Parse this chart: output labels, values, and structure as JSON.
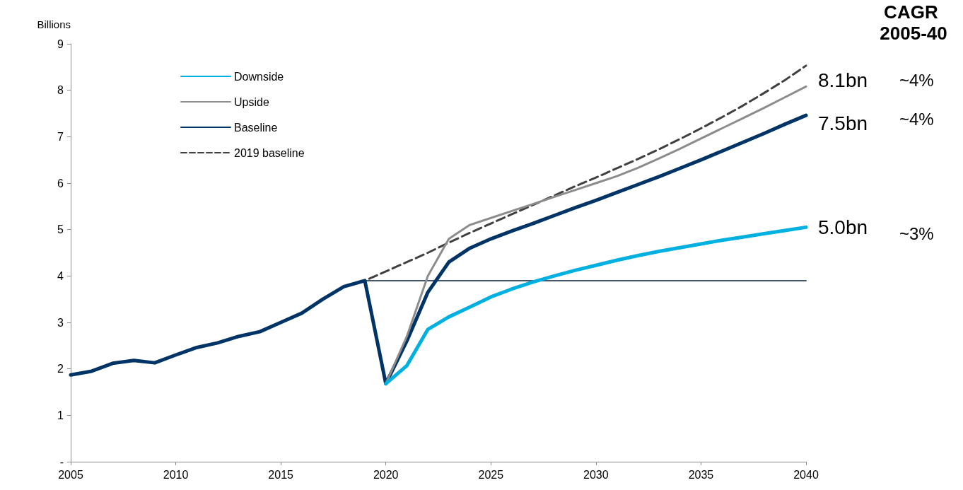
{
  "chart_data": {
    "type": "line",
    "ylabel": "Billions",
    "x": [
      2005,
      2006,
      2007,
      2008,
      2009,
      2010,
      2011,
      2012,
      2013,
      2014,
      2015,
      2016,
      2017,
      2018,
      2019,
      2020,
      2021,
      2022,
      2023,
      2024,
      2025,
      2026,
      2027,
      2028,
      2029,
      2030,
      2031,
      2032,
      2033,
      2034,
      2035,
      2036,
      2037,
      2038,
      2039,
      2040
    ],
    "series": [
      {
        "name": "Downside",
        "color": "#00b0e0",
        "values": [
          null,
          null,
          null,
          null,
          null,
          null,
          null,
          null,
          null,
          null,
          null,
          null,
          null,
          null,
          null,
          1.68,
          2.07,
          2.85,
          3.12,
          3.33,
          3.55,
          3.72,
          3.87,
          4.0,
          4.12,
          4.23,
          4.34,
          4.44,
          4.53,
          4.61,
          4.69,
          4.77,
          4.84,
          4.91,
          4.98,
          5.05
        ]
      },
      {
        "name": "Upside",
        "color": "#8c8c8c",
        "line_style": "solid",
        "values": [
          null,
          null,
          null,
          null,
          null,
          null,
          null,
          null,
          null,
          null,
          null,
          null,
          null,
          null,
          null,
          1.68,
          2.7,
          4.0,
          4.8,
          5.1,
          5.25,
          5.4,
          5.55,
          5.7,
          5.85,
          6.0,
          6.15,
          6.33,
          6.53,
          6.74,
          6.96,
          7.18,
          7.4,
          7.62,
          7.85,
          8.08
        ]
      },
      {
        "name": "Baseline",
        "color": "#003366",
        "values": [
          1.87,
          1.95,
          2.12,
          2.18,
          2.13,
          2.3,
          2.46,
          2.56,
          2.7,
          2.8,
          3.0,
          3.2,
          3.5,
          3.77,
          3.9,
          1.68,
          2.6,
          3.65,
          4.3,
          4.6,
          4.8,
          4.97,
          5.13,
          5.3,
          5.47,
          5.63,
          5.8,
          5.97,
          6.14,
          6.32,
          6.5,
          6.69,
          6.88,
          7.07,
          7.27,
          7.46
        ]
      },
      {
        "name": "2019 baseline",
        "color": "#404040",
        "line_style": "dashed",
        "values": [
          1.87,
          1.95,
          2.12,
          2.18,
          2.13,
          2.3,
          2.46,
          2.56,
          2.7,
          2.8,
          3.0,
          3.2,
          3.5,
          3.77,
          3.9,
          4.1,
          4.3,
          4.5,
          4.72,
          4.93,
          5.13,
          5.33,
          5.53,
          5.73,
          5.93,
          6.12,
          6.32,
          6.52,
          6.73,
          6.95,
          7.18,
          7.42,
          7.67,
          7.94,
          8.22,
          8.53
        ]
      },
      {
        "color": "#44546a",
        "x": [
          2019,
          2040
        ],
        "values": [
          3.9,
          3.9
        ]
      }
    ],
    "xlim": [
      2005,
      2040
    ],
    "xticks": [
      2005,
      2010,
      2015,
      2020,
      2025,
      2030,
      2035,
      2040
    ],
    "ylim": [
      0,
      9
    ],
    "yticks": [
      {
        "value": 0,
        "label": "-"
      },
      1,
      2,
      3,
      4,
      5,
      6,
      7,
      8,
      9
    ],
    "grid": false,
    "legend": "top left",
    "marker": "none",
    "line_style": "solid",
    "annotations": [
      "CAGR 2005-40",
      "8.1bn",
      "7.5bn",
      "5.0bn",
      "~4%",
      "~4%",
      "~3%"
    ]
  }
}
